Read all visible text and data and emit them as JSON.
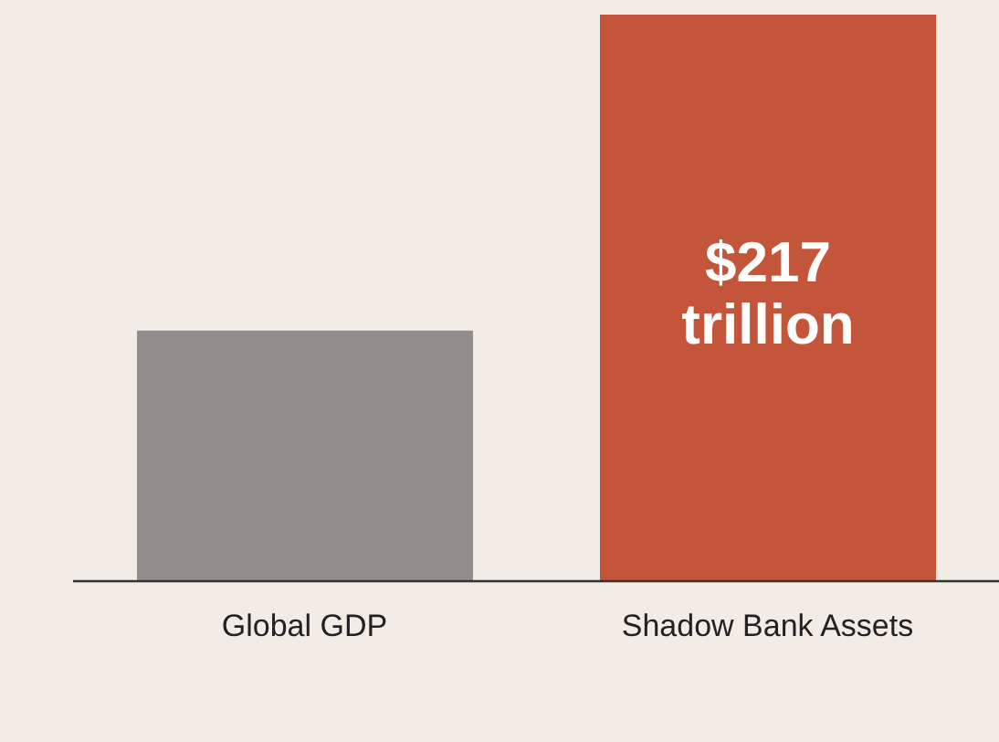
{
  "chart_data": {
    "type": "bar",
    "categories": [
      "Global GDP",
      "Shadow Bank Assets"
    ],
    "values": [
      96,
      217
    ],
    "colors": [
      "#8f8e8b",
      "#c2553a"
    ],
    "value_labels": [
      null,
      "$217 trillion"
    ]
  }
}
